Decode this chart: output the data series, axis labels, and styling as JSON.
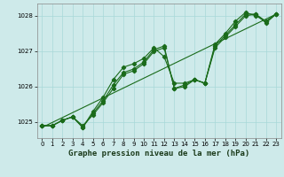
{
  "x": [
    0,
    1,
    2,
    3,
    4,
    5,
    6,
    7,
    8,
    9,
    10,
    11,
    12,
    13,
    14,
    15,
    16,
    17,
    18,
    19,
    20,
    21,
    22,
    23
  ],
  "line1": [
    1024.9,
    1024.9,
    1025.05,
    1025.15,
    1024.85,
    1025.3,
    1025.7,
    1026.2,
    1026.55,
    1026.65,
    1026.8,
    1027.1,
    1026.85,
    1026.1,
    1026.1,
    1026.2,
    1026.1,
    1027.2,
    1027.5,
    1027.85,
    1028.1,
    1028.0,
    1027.85,
    1028.05
  ],
  "line2": [
    1024.9,
    1024.9,
    1025.05,
    1025.15,
    1024.85,
    1025.25,
    1025.6,
    1026.05,
    1026.4,
    1026.5,
    1026.7,
    1027.05,
    1027.15,
    1025.95,
    1026.05,
    1026.2,
    1026.1,
    1027.15,
    1027.45,
    1027.75,
    1028.05,
    1028.05,
    1027.85,
    1028.05
  ],
  "line3": [
    1024.9,
    1024.9,
    1025.05,
    1025.15,
    1024.9,
    1025.2,
    1025.55,
    1025.95,
    1026.35,
    1026.45,
    1026.65,
    1027.0,
    1027.1,
    1025.95,
    1026.0,
    1026.2,
    1026.1,
    1027.1,
    1027.4,
    1027.7,
    1028.0,
    1028.05,
    1027.8,
    1028.05
  ],
  "trend_x": [
    0,
    23
  ],
  "trend_y": [
    1024.85,
    1028.05
  ],
  "ylim": [
    1024.55,
    1028.35
  ],
  "xlim": [
    -0.5,
    23.5
  ],
  "yticks": [
    1025,
    1026,
    1027,
    1028
  ],
  "xticks": [
    0,
    1,
    2,
    3,
    4,
    5,
    6,
    7,
    8,
    9,
    10,
    11,
    12,
    13,
    14,
    15,
    16,
    17,
    18,
    19,
    20,
    21,
    22,
    23
  ],
  "line_color": "#1a6b1a",
  "bg_color": "#ceeaea",
  "grid_color": "#a8d8d8",
  "xlabel": "Graphe pression niveau de la mer (hPa)",
  "marker": "D",
  "marker_size": 2.2,
  "tick_fontsize": 5.0,
  "xlabel_fontsize": 6.5
}
